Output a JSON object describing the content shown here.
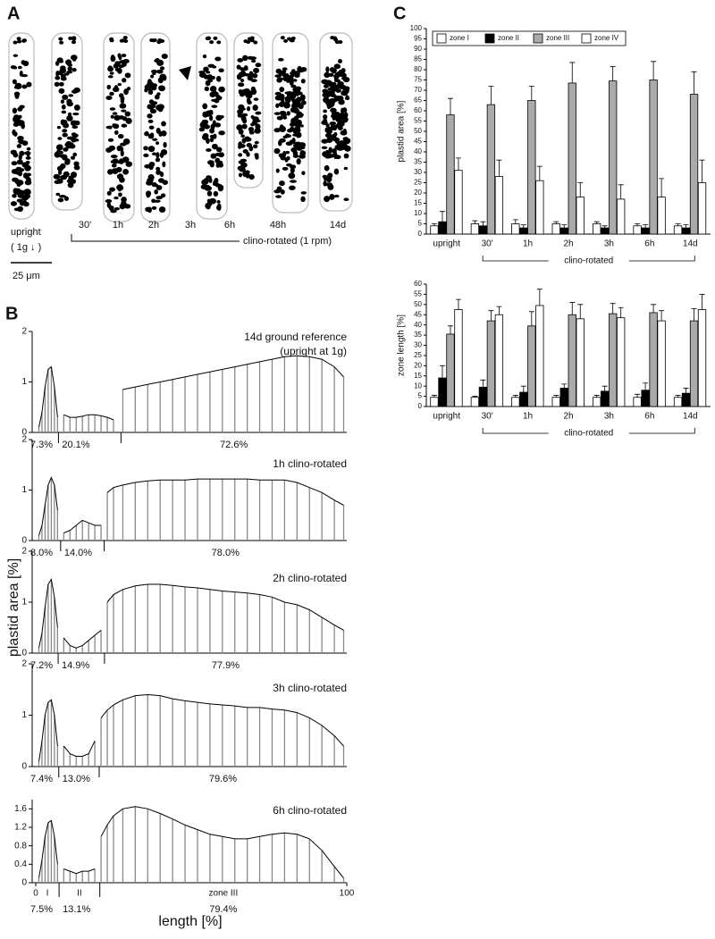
{
  "panel_labels": [
    "A",
    "B",
    "C"
  ],
  "panel_a": {
    "cells": [
      "30'",
      "1h",
      "2h",
      "3h",
      "6h",
      "48h",
      "14d"
    ],
    "upright_label": "upright",
    "g_label": "( 1g ↓ )",
    "scale_label": "25 μm",
    "bracket_label": "clino-rotated (1 rpm)"
  },
  "panel_b": {
    "ylabel": "plastid area [%]",
    "xlabel": "length [%]"
  },
  "chart_data": [
    {
      "type": "histogram_curve",
      "title": "14d ground reference",
      "subtitle": "(upright at 1g)",
      "x": [
        1,
        2,
        3,
        4,
        5,
        6,
        7,
        9,
        11,
        13,
        15,
        17,
        19,
        21,
        23,
        25,
        28,
        32,
        36,
        40,
        44,
        48,
        52,
        56,
        60,
        64,
        68,
        72,
        76,
        80,
        84,
        88,
        92,
        96,
        99
      ],
      "values": [
        0.1,
        0.4,
        0.9,
        1.25,
        1.3,
        0.9,
        0.3,
        0.35,
        0.3,
        0.3,
        0.32,
        0.35,
        0.35,
        0.33,
        0.3,
        0.25,
        0.85,
        0.9,
        0.95,
        1.0,
        1.05,
        1.1,
        1.15,
        1.2,
        1.25,
        1.3,
        1.35,
        1.4,
        1.45,
        1.5,
        1.52,
        1.5,
        1.45,
        1.3,
        1.1
      ],
      "zones": [
        {
          "value": 7.3,
          "label": "7.3%"
        },
        {
          "value": 20.1,
          "label": "20.1%"
        },
        {
          "value": 72.6,
          "label": "72.6%"
        }
      ],
      "xlim": [
        0,
        100
      ],
      "ylim": [
        0,
        2
      ],
      "yticks": [
        0,
        1,
        2
      ],
      "color": "#888888",
      "curve": true
    },
    {
      "type": "histogram_curve",
      "title": "1h clino-rotated",
      "x": [
        1,
        2,
        3,
        4,
        5,
        6,
        7,
        9,
        11,
        13,
        15,
        17,
        19,
        21,
        23,
        25,
        28,
        32,
        36,
        40,
        44,
        48,
        52,
        56,
        60,
        64,
        68,
        72,
        76,
        80,
        84,
        88,
        92,
        96,
        99
      ],
      "values": [
        0.1,
        0.3,
        0.7,
        1.1,
        1.25,
        1.1,
        0.6,
        0.15,
        0.2,
        0.3,
        0.4,
        0.35,
        0.3,
        0.3,
        0.95,
        1.05,
        1.1,
        1.15,
        1.18,
        1.2,
        1.2,
        1.2,
        1.22,
        1.22,
        1.22,
        1.22,
        1.22,
        1.2,
        1.2,
        1.2,
        1.15,
        1.05,
        0.95,
        0.8,
        0.7
      ],
      "zones": [
        {
          "value": 8.0,
          "label": "8.0%"
        },
        {
          "value": 14.0,
          "label": "14.0%"
        },
        {
          "value": 78.0,
          "label": "78.0%"
        }
      ],
      "xlim": [
        0,
        100
      ],
      "ylim": [
        0,
        2
      ],
      "yticks": [
        0,
        1,
        2
      ],
      "color": "#888888",
      "curve": true
    },
    {
      "type": "histogram_curve",
      "title": "2h clino-rotated",
      "x": [
        1,
        2,
        3,
        4,
        5,
        6,
        7,
        9,
        11,
        13,
        15,
        17,
        19,
        21,
        23,
        25,
        28,
        32,
        36,
        40,
        44,
        48,
        52,
        56,
        60,
        64,
        68,
        72,
        76,
        80,
        84,
        88,
        92,
        96,
        99
      ],
      "values": [
        0.1,
        0.4,
        0.9,
        1.35,
        1.45,
        1.1,
        0.5,
        0.3,
        0.15,
        0.1,
        0.15,
        0.25,
        0.35,
        0.45,
        1.0,
        1.15,
        1.25,
        1.32,
        1.35,
        1.35,
        1.33,
        1.3,
        1.28,
        1.25,
        1.22,
        1.2,
        1.18,
        1.15,
        1.1,
        1.0,
        0.95,
        0.85,
        0.7,
        0.55,
        0.45
      ],
      "zones": [
        {
          "value": 7.2,
          "label": "7.2%"
        },
        {
          "value": 14.9,
          "label": "14.9%"
        },
        {
          "value": 77.9,
          "label": "77.9%"
        }
      ],
      "xlim": [
        0,
        100
      ],
      "ylim": [
        0,
        2
      ],
      "yticks": [
        0,
        1,
        2
      ],
      "color": "#888888",
      "curve": true
    },
    {
      "type": "histogram_curve",
      "title": "3h clino-rotated",
      "x": [
        1,
        2,
        3,
        4,
        5,
        6,
        7,
        9,
        11,
        13,
        15,
        17,
        19,
        21,
        23,
        25,
        28,
        32,
        36,
        40,
        44,
        48,
        52,
        56,
        60,
        64,
        68,
        72,
        76,
        80,
        84,
        88,
        92,
        96,
        99
      ],
      "values": [
        0.1,
        0.5,
        1.0,
        1.25,
        1.3,
        1.0,
        0.4,
        0.4,
        0.25,
        0.2,
        0.2,
        0.25,
        0.5,
        0.95,
        1.1,
        1.2,
        1.3,
        1.38,
        1.4,
        1.38,
        1.32,
        1.28,
        1.25,
        1.22,
        1.2,
        1.18,
        1.15,
        1.15,
        1.12,
        1.1,
        1.05,
        0.95,
        0.8,
        0.6,
        0.4
      ],
      "zones": [
        {
          "value": 7.4,
          "label": "7.4%"
        },
        {
          "value": 13.0,
          "label": "13.0%"
        },
        {
          "value": 79.6,
          "label": "79.6%"
        }
      ],
      "xlim": [
        0,
        100
      ],
      "ylim": [
        0,
        2
      ],
      "yticks": [
        0,
        1,
        2
      ],
      "color": "#888888",
      "curve": true
    },
    {
      "type": "histogram_curve",
      "title": "6h clino-rotated",
      "x": [
        1,
        2,
        3,
        4,
        5,
        6,
        7,
        9,
        11,
        13,
        15,
        17,
        19,
        21,
        23,
        25,
        28,
        32,
        36,
        40,
        44,
        48,
        52,
        56,
        60,
        64,
        68,
        72,
        76,
        80,
        84,
        88,
        92,
        96,
        99
      ],
      "values": [
        0.1,
        0.5,
        1.0,
        1.3,
        1.35,
        1.0,
        0.4,
        0.3,
        0.25,
        0.2,
        0.25,
        0.25,
        0.3,
        1.0,
        1.25,
        1.45,
        1.6,
        1.65,
        1.6,
        1.5,
        1.38,
        1.25,
        1.15,
        1.05,
        1.0,
        0.95,
        0.95,
        1.0,
        1.05,
        1.08,
        1.05,
        0.95,
        0.7,
        0.35,
        0.1
      ],
      "zones": [
        {
          "value": 7.5,
          "label": "7.5%"
        },
        {
          "value": 13.1,
          "label": "13.1%"
        },
        {
          "value": 79.4,
          "label": "79.4%"
        }
      ],
      "zone_names": [
        "I",
        "II",
        "zone III"
      ],
      "xlim": [
        0,
        100
      ],
      "xticks": [
        0,
        100
      ],
      "ylim": [
        0,
        1.8
      ],
      "yticks": [
        0,
        0.4,
        0.8,
        1.2,
        1.6
      ],
      "color": "#888888",
      "curve": true
    },
    {
      "type": "grouped_bar",
      "ylabel": "plastid area [%]",
      "bracket_label": "clino-rotated",
      "legend": "top",
      "categories": [
        "upright",
        "30'",
        "1h",
        "2h",
        "3h",
        "6h",
        "14d"
      ],
      "series": [
        {
          "name": "zone I",
          "color": "#ffffff",
          "values": [
            4,
            5,
            5,
            5,
            5,
            4,
            4
          ],
          "errors": [
            1,
            1.5,
            2,
            1,
            1,
            1,
            1
          ]
        },
        {
          "name": "zone II",
          "color": "#000000",
          "values": [
            6,
            4,
            3,
            3,
            3,
            3,
            3
          ],
          "errors": [
            5,
            2,
            1.5,
            1.5,
            1,
            1.5,
            1.5
          ]
        },
        {
          "name": "zone III",
          "color": "#aaaaaa",
          "values": [
            58,
            63,
            65,
            73.5,
            74.5,
            75,
            68
          ],
          "errors": [
            8,
            9,
            7,
            10,
            7,
            9,
            11
          ]
        },
        {
          "name": "zone IV",
          "color": "#ffffff",
          "values": [
            31,
            28,
            26,
            18,
            17,
            18,
            25
          ],
          "errors": [
            6,
            8,
            7,
            7,
            7,
            9,
            11
          ]
        }
      ],
      "ylim": [
        0,
        100
      ],
      "yticks": [
        0,
        5,
        10,
        15,
        20,
        25,
        30,
        35,
        40,
        45,
        50,
        55,
        60,
        65,
        70,
        75,
        80,
        85,
        90,
        95,
        100
      ]
    },
    {
      "type": "grouped_bar",
      "ylabel": "zone length [%]",
      "bracket_label": "clino-rotated",
      "categories": [
        "upright",
        "30'",
        "1h",
        "2h",
        "3h",
        "6h",
        "14d"
      ],
      "series": [
        {
          "name": "zone I",
          "color": "#ffffff",
          "values": [
            4.5,
            4.5,
            4.5,
            4.5,
            4.5,
            4.5,
            4.5
          ],
          "errors": [
            1,
            0.5,
            1,
            1,
            1,
            1.5,
            1
          ]
        },
        {
          "name": "zone II",
          "color": "#000000",
          "values": [
            14,
            9.5,
            7,
            9,
            7.5,
            8,
            6.5
          ],
          "errors": [
            6,
            3.5,
            3,
            2,
            2.5,
            3.5,
            2.5
          ]
        },
        {
          "name": "zone III",
          "color": "#aaaaaa",
          "values": [
            35.5,
            42,
            39.5,
            45,
            45.5,
            46,
            42
          ],
          "errors": [
            4,
            5,
            7,
            6,
            5,
            4,
            6
          ]
        },
        {
          "name": "zone IV",
          "color": "#ffffff",
          "values": [
            47.5,
            45,
            49.5,
            43,
            43.5,
            42,
            47.5
          ],
          "errors": [
            5,
            4,
            8,
            7,
            5,
            5,
            7.5
          ]
        }
      ],
      "ylim": [
        0,
        60
      ],
      "yticks": [
        0,
        5,
        10,
        15,
        20,
        25,
        30,
        35,
        40,
        45,
        50,
        55,
        60
      ]
    }
  ]
}
